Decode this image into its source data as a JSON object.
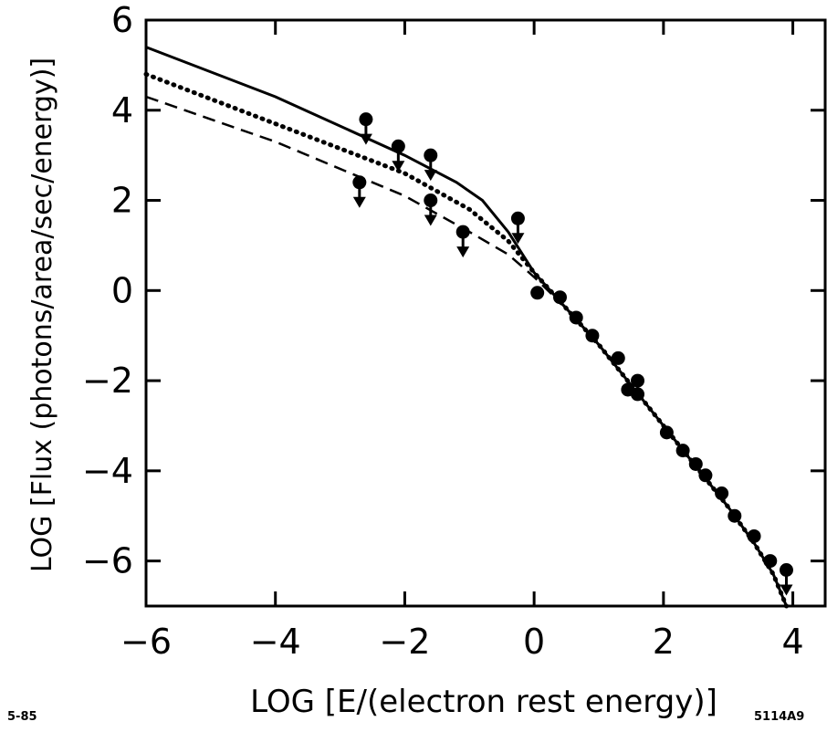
{
  "chart_data": {
    "type": "scatter",
    "title": "",
    "xlabel": "LOG [E/(electron rest energy)]",
    "ylabel": "LOG [Flux (photons/area/sec/energy)]",
    "xlim": [
      -6,
      4.5
    ],
    "ylim": [
      -7,
      6
    ],
    "xticks": [
      -6,
      -4,
      -2,
      0,
      2,
      4
    ],
    "yticks": [
      -6,
      -4,
      -2,
      0,
      2,
      4,
      6
    ],
    "xtick_labels": [
      "-6",
      "-4",
      "-2",
      "0",
      "2",
      "4"
    ],
    "ytick_labels": [
      "-6",
      "-4",
      "-2",
      "0",
      "2",
      "4",
      "6"
    ],
    "grid": false,
    "legend": "none",
    "series": [
      {
        "style": "solid",
        "color": "#000000",
        "x": [
          -6,
          -4,
          -2,
          -1.2,
          -0.8,
          -0.4,
          0,
          0.5,
          1.0,
          1.5,
          2.0,
          2.5,
          3.0,
          3.4,
          3.7,
          3.9
        ],
        "y": [
          5.4,
          4.3,
          3.0,
          2.4,
          2.0,
          1.3,
          0.4,
          -0.4,
          -1.2,
          -2.1,
          -3.0,
          -3.9,
          -4.8,
          -5.6,
          -6.3,
          -7.0
        ]
      },
      {
        "style": "dotted",
        "color": "#000000",
        "x": [
          -6,
          -4,
          -2,
          -1.0,
          -0.4,
          0,
          0.5,
          1.0,
          1.5,
          2.0,
          2.5,
          3.0,
          3.4,
          3.7,
          3.9
        ],
        "y": [
          4.8,
          3.7,
          2.6,
          1.8,
          1.1,
          0.4,
          -0.4,
          -1.2,
          -2.1,
          -3.0,
          -3.9,
          -4.8,
          -5.6,
          -6.3,
          -7.0
        ]
      },
      {
        "style": "dashed",
        "color": "#000000",
        "x": [
          -6,
          -4,
          -2,
          -1.0,
          -0.4,
          0,
          0.5,
          1.0,
          1.5,
          2.0,
          2.5,
          3.0,
          3.4,
          3.7,
          3.9
        ],
        "y": [
          4.3,
          3.3,
          2.1,
          1.3,
          0.8,
          0.3,
          -0.4,
          -1.2,
          -2.1,
          -3.0,
          -3.9,
          -4.8,
          -5.6,
          -6.3,
          -7.0
        ]
      }
    ],
    "upper_limits": [
      {
        "x": -2.6,
        "y": 3.8
      },
      {
        "x": -2.1,
        "y": 3.2
      },
      {
        "x": -1.6,
        "y": 3.0
      },
      {
        "x": -2.7,
        "y": 2.4
      },
      {
        "x": -1.6,
        "y": 2.0
      },
      {
        "x": -1.1,
        "y": 1.3
      },
      {
        "x": -0.25,
        "y": 1.6
      },
      {
        "x": 3.9,
        "y": -6.2
      }
    ],
    "points": [
      {
        "x": 0.05,
        "y": -0.05
      },
      {
        "x": 0.4,
        "y": -0.15
      },
      {
        "x": 0.65,
        "y": -0.6
      },
      {
        "x": 0.9,
        "y": -1.0
      },
      {
        "x": 1.3,
        "y": -1.5
      },
      {
        "x": 1.45,
        "y": -2.2
      },
      {
        "x": 1.6,
        "y": -2.0
      },
      {
        "x": 1.6,
        "y": -2.3
      },
      {
        "x": 2.05,
        "y": -3.15
      },
      {
        "x": 2.3,
        "y": -3.55
      },
      {
        "x": 2.5,
        "y": -3.85
      },
      {
        "x": 2.65,
        "y": -4.1
      },
      {
        "x": 2.9,
        "y": -4.5
      },
      {
        "x": 3.1,
        "y": -5.0
      },
      {
        "x": 3.4,
        "y": -5.45
      },
      {
        "x": 3.65,
        "y": -6.0
      }
    ]
  },
  "footer": {
    "left": "5-85",
    "right": "5114A9"
  }
}
